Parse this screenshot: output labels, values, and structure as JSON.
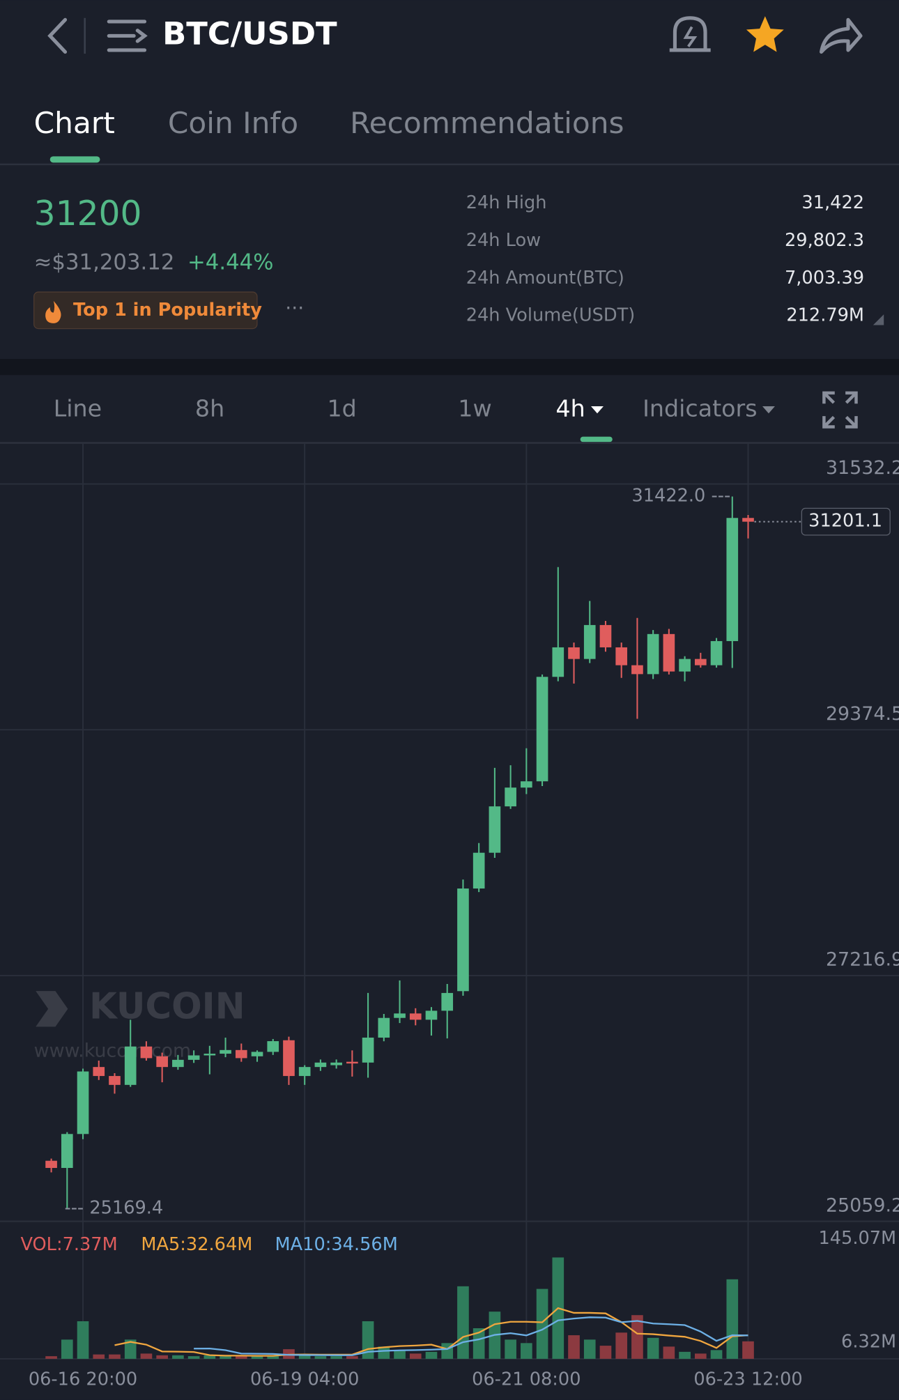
{
  "header": {
    "title": "BTC/USDT"
  },
  "tabs": [
    "Chart",
    "Coin Info",
    "Recommendations"
  ],
  "ticker": {
    "price": "31200",
    "usd": "≈$31,203.12",
    "change": "+4.44%",
    "badge": "Top 1 in Popularity",
    "more": "···"
  },
  "stats": [
    [
      "24h High",
      "31,422"
    ],
    [
      "24h Low",
      "29,802.3"
    ],
    [
      "24h Amount(BTC)",
      "7,003.39"
    ],
    [
      "24h Volume(USDT)",
      "212.79M"
    ]
  ],
  "periods": [
    "Line",
    "8h",
    "1d",
    "1w",
    "4h",
    "Indicators"
  ],
  "watermark": [
    "KUCOIN",
    "www.kucoin.com"
  ],
  "chart_data": {
    "type": "candlestick",
    "categories": [
      null,
      null,
      "06-16 20:00",
      null,
      null,
      null,
      null,
      null,
      null,
      null,
      null,
      null,
      null,
      null,
      null,
      null,
      "06-19 04:00",
      null,
      null,
      null,
      null,
      null,
      null,
      null,
      null,
      null,
      null,
      null,
      null,
      null,
      "06-21 08:00",
      null,
      null,
      null,
      null,
      null,
      null,
      null,
      null,
      null,
      null,
      null,
      null,
      null,
      "06-23 12:00"
    ],
    "open": [
      25591,
      25528,
      25826,
      26414,
      26335,
      26257,
      26594,
      26508,
      26414,
      26477,
      26516,
      26531,
      26563,
      26508,
      26547,
      26649,
      26335,
      26414,
      26430,
      26460,
      26453,
      26672,
      26845,
      26884,
      26829,
      26908,
      27080,
      27981,
      28295,
      28702,
      28867,
      28922,
      29839,
      30098,
      29996,
      30294,
      30098,
      29941,
      29863,
      30215,
      29886,
      29996,
      29941,
      30153,
      31234
    ],
    "high": [
      25610,
      25842,
      26400,
      26470,
      26360,
      26829,
      26640,
      26540,
      26520,
      26560,
      26600,
      26672,
      26620,
      26560,
      26660,
      26680,
      26430,
      26480,
      26480,
      26560,
      27064,
      26880,
      27174,
      26930,
      26940,
      27143,
      28060,
      28380,
      29040,
      29063,
      29212,
      29860,
      30803,
      30140,
      30505,
      30330,
      30140,
      30356,
      30250,
      30260,
      30020,
      30050,
      30180,
      31422,
      31260
    ],
    "low": [
      25489,
      25169.4,
      25780,
      26300,
      26180,
      26240,
      26470,
      26280,
      26390,
      26450,
      26350,
      26500,
      26460,
      26460,
      26520,
      26257,
      26257,
      26380,
      26400,
      26330,
      26320,
      26640,
      26800,
      26780,
      26690,
      26665,
      27040,
      27950,
      28250,
      28680,
      28810,
      28880,
      29800,
      29780,
      29960,
      30060,
      29830,
      29471,
      29820,
      29860,
      29800,
      29920,
      29920,
      29917,
      31054
    ],
    "close": [
      25528,
      25826,
      26375,
      26335,
      26257,
      26594,
      26492,
      26414,
      26477,
      26516,
      26531,
      26563,
      26492,
      26547,
      26641,
      26335,
      26414,
      26453,
      26453,
      26445,
      26672,
      26845,
      26884,
      26829,
      26908,
      27064,
      27981,
      28295,
      28702,
      28867,
      28922,
      29839,
      30098,
      29996,
      30294,
      30098,
      29941,
      29863,
      30215,
      29886,
      29996,
      29941,
      30153,
      31234,
      31201.1
    ],
    "up_color": "#53b987",
    "down_color": "#e05d5d",
    "ylim": [
      25059.2,
      31885
    ],
    "yticks": [
      31532.2,
      29374.5,
      27216.9,
      25059.2
    ],
    "grid": true,
    "high_label": "31422.0 ---",
    "low_label": "--- 25169.4",
    "last_label": "31201.1",
    "volume": {
      "label": "VOL:7.37M",
      "label_color": "#e05d5d",
      "values": [
        3,
        22,
        43,
        5,
        5,
        22,
        6,
        4,
        4,
        3,
        4,
        3,
        4,
        3,
        3,
        11,
        4,
        3,
        3,
        3,
        43,
        14,
        10,
        6,
        8,
        18,
        83,
        35,
        54,
        22,
        18,
        80,
        116,
        27,
        22,
        15,
        30,
        50,
        24,
        14,
        8,
        6,
        10,
        91,
        20
      ],
      "up_color": "#2f7d5c",
      "down_color": "#8c3a40",
      "ylim": [
        0,
        145.07
      ],
      "yticks": [
        {
          "value": 145.07,
          "label": "145.07M"
        },
        {
          "value": 6.32,
          "label": "6.32M"
        }
      ],
      "series": [
        {
          "name": "MA5:32.64M",
          "color": "#f0a63f",
          "values": [
            null,
            null,
            null,
            null,
            15.6,
            19.4,
            16.2,
            8.4,
            8.2,
            7.8,
            4.2,
            3.6,
            3.6,
            3.4,
            3.4,
            4.8,
            5,
            4.8,
            4.8,
            4.8,
            11.2,
            13.2,
            14.6,
            15.2,
            16.2,
            11.2,
            25,
            30,
            39.6,
            42.4,
            42.4,
            41.8,
            58,
            52.6,
            52.6,
            52,
            42,
            28.8,
            28.2,
            26.6,
            25.2,
            20.4,
            12.4,
            25.8,
            27
          ]
        },
        {
          "name": "MA10:34.56M",
          "color": "#6db0e6",
          "values": [
            null,
            null,
            null,
            null,
            null,
            null,
            null,
            null,
            null,
            11.7,
            11.8,
            9.9,
            6,
            5.8,
            5.6,
            4.5,
            4.3,
            4.2,
            4.1,
            4.1,
            8,
            9.1,
            9.7,
            10,
            10.5,
            11.2,
            19.1,
            22.3,
            27.4,
            29.3,
            26.8,
            33.4,
            44,
            46.1,
            47.5,
            47.2,
            41.9,
            43.4,
            40.4,
            39.6,
            38.6,
            31.2,
            20.6,
            27,
            26.8
          ]
        }
      ]
    }
  }
}
